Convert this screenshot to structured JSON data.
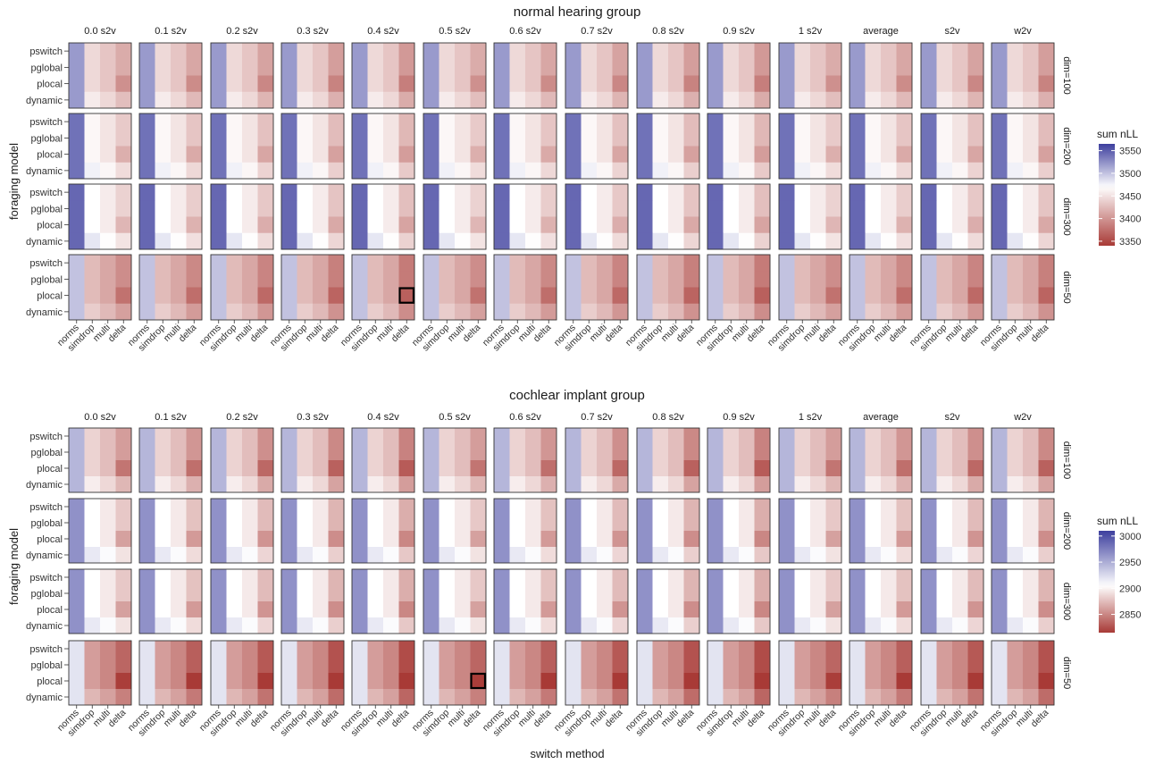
{
  "chart_data": [
    {
      "type": "heatmap",
      "title": "normal hearing group",
      "xlabel": "switch method",
      "ylabel": "foraging model",
      "columns": [
        "0.0 s2v",
        "0.1 s2v",
        "0.2 s2v",
        "0.3 s2v",
        "0.4 s2v",
        "0.5 s2v",
        "0.6 s2v",
        "0.7 s2v",
        "0.8 s2v",
        "0.9 s2v",
        "1 s2v",
        "average",
        "s2v",
        "w2v"
      ],
      "rows": [
        "dim=100",
        "dim=200",
        "dim=300",
        "dim=50"
      ],
      "x_categories": [
        "norms",
        "simdrop",
        "multi",
        "delta"
      ],
      "y_categories": [
        "pswitch",
        "pglobal",
        "plocal",
        "dynamic"
      ],
      "legend": {
        "title": "sum nLL",
        "ticks": [
          3550,
          3500,
          3450,
          3400,
          3350
        ],
        "range": [
          3340,
          3565
        ],
        "mid": 3470,
        "low_color": "#a83a36",
        "mid_color": "#ffffff",
        "high_color": "#3d3f9e"
      },
      "base_values": [
        3520,
        3445,
        3432,
        3415
      ],
      "highlight": {
        "column": "0.4 s2v",
        "row": "dim=50",
        "x": "delta",
        "y": "plocal"
      },
      "dim_offsets": [
        0,
        20,
        25,
        -20
      ],
      "method_offsets": [
        0,
        0,
        0,
        0
      ]
    },
    {
      "type": "heatmap",
      "title": "cochlear implant group",
      "xlabel": "switch method",
      "ylabel": "foraging model",
      "columns": [
        "0.0 s2v",
        "0.1 s2v",
        "0.2 s2v",
        "0.3 s2v",
        "0.4 s2v",
        "0.5 s2v",
        "0.6 s2v",
        "0.7 s2v",
        "0.8 s2v",
        "0.9 s2v",
        "1 s2v",
        "average",
        "s2v",
        "w2v"
      ],
      "rows": [
        "dim=100",
        "dim=200",
        "dim=300",
        "dim=50"
      ],
      "x_categories": [
        "norms",
        "simdrop",
        "multi",
        "delta"
      ],
      "y_categories": [
        "pswitch",
        "pglobal",
        "plocal",
        "dynamic"
      ],
      "legend": {
        "title": "sum nLL",
        "ticks": [
          3000,
          2950,
          2900,
          2850
        ],
        "range": [
          2815,
          3010
        ],
        "mid": 2905,
        "low_color": "#a83a36",
        "mid_color": "#ffffff",
        "high_color": "#3d3f9e"
      },
      "base_values": [
        2945,
        2885,
        2875,
        2860
      ],
      "highlight": {
        "column": "0.5 s2v",
        "row": "dim=50",
        "x": "delta",
        "y": "plocal"
      },
      "dim_offsets": [
        0,
        20,
        20,
        -25
      ],
      "method_offsets": [
        0,
        0,
        0,
        0
      ]
    }
  ]
}
